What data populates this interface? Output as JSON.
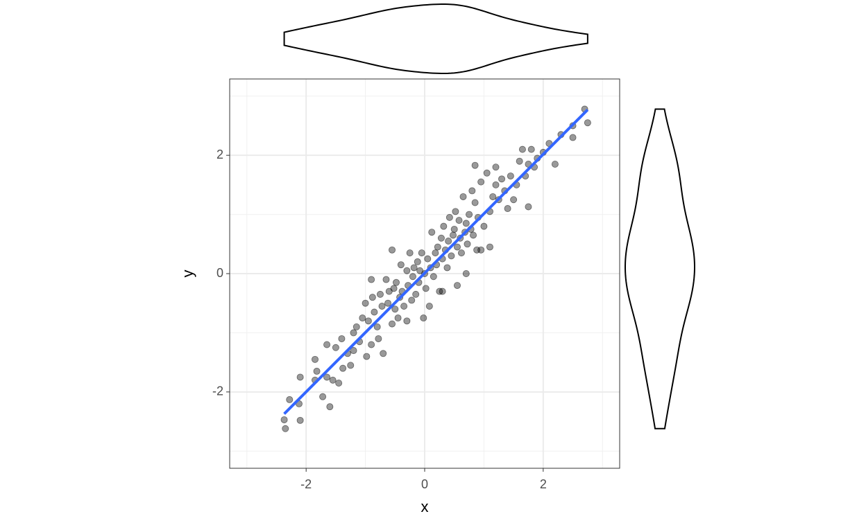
{
  "chart_data": {
    "type": "scatter",
    "x_label": "x",
    "y_label": "y",
    "xlim": [
      -3.29,
      3.29
    ],
    "ylim": [
      -3.29,
      3.29
    ],
    "xticks": [
      -2,
      0,
      2
    ],
    "yticks": [
      -2,
      0,
      2
    ],
    "xminor": [
      -3,
      -1,
      1,
      3
    ],
    "yminor": [
      -3,
      -1,
      1,
      3
    ],
    "grid": true,
    "color": "#000000",
    "marginal": "violin",
    "fit": {
      "color": "#3366FF",
      "x": [
        -2.37,
        2.75
      ],
      "y": [
        -2.37,
        2.77
      ]
    },
    "x": [
      -2.37,
      -2.35,
      -2.28,
      -2.12,
      -2.1,
      -2.1,
      -1.85,
      -1.85,
      -1.82,
      -1.72,
      -1.65,
      -1.6,
      -1.55,
      -1.5,
      -1.45,
      -1.4,
      -1.38,
      -1.3,
      -1.25,
      -1.2,
      -1.2,
      -1.15,
      -1.1,
      -1.05,
      -1.0,
      -0.98,
      -0.95,
      -0.9,
      -0.88,
      -0.85,
      -0.8,
      -0.78,
      -0.75,
      -0.72,
      -0.7,
      -0.65,
      -0.62,
      -0.6,
      -0.55,
      -0.52,
      -0.5,
      -0.48,
      -0.45,
      -0.42,
      -0.4,
      -0.38,
      -0.35,
      -0.3,
      -0.28,
      -0.25,
      -0.22,
      -0.2,
      -0.18,
      -0.15,
      -0.12,
      -0.1,
      -0.08,
      -0.05,
      -0.02,
      0.0,
      0.02,
      0.05,
      0.08,
      0.1,
      0.12,
      0.15,
      0.18,
      0.2,
      0.22,
      0.25,
      0.28,
      0.3,
      0.32,
      0.35,
      0.38,
      0.4,
      0.42,
      0.45,
      0.48,
      0.5,
      0.52,
      0.55,
      0.58,
      0.6,
      0.62,
      0.65,
      0.68,
      0.7,
      0.72,
      0.75,
      0.78,
      0.8,
      0.82,
      0.85,
      0.88,
      0.9,
      0.95,
      1.0,
      1.05,
      1.1,
      1.15,
      1.2,
      1.25,
      1.3,
      1.35,
      1.4,
      1.45,
      1.5,
      1.55,
      1.6,
      1.65,
      1.7,
      1.75,
      1.8,
      1.85,
      1.9,
      2.0,
      2.1,
      2.2,
      2.3,
      2.5,
      2.5,
      2.7,
      2.75,
      0.85,
      0.55,
      1.1,
      -0.9,
      0.3,
      0.95,
      -0.3,
      0.7,
      1.75,
      -0.55,
      1.2,
      -1.65
    ],
    "values": [
      -2.47,
      -2.62,
      -2.13,
      -2.2,
      -1.75,
      -2.48,
      -1.45,
      -1.8,
      -1.65,
      -2.08,
      -1.2,
      -2.25,
      -1.8,
      -1.25,
      -1.85,
      -1.1,
      -1.6,
      -1.35,
      -1.55,
      -1.3,
      -1.0,
      -0.9,
      -1.15,
      -0.75,
      -0.5,
      -1.4,
      -0.8,
      -1.2,
      -0.4,
      -0.65,
      -0.9,
      -1.1,
      -0.35,
      -0.55,
      -1.35,
      -0.1,
      -0.5,
      -0.3,
      -0.85,
      -0.25,
      -0.6,
      -0.15,
      -0.75,
      -0.4,
      0.15,
      -0.3,
      -0.55,
      0.05,
      -0.2,
      0.35,
      -0.45,
      -0.05,
      0.1,
      -0.35,
      0.2,
      -0.15,
      0.05,
      0.35,
      -0.75,
      0.0,
      -0.25,
      0.25,
      -0.55,
      0.1,
      0.7,
      -0.05,
      0.35,
      0.15,
      0.45,
      -0.3,
      0.6,
      0.25,
      0.8,
      0.4,
      0.1,
      0.55,
      0.95,
      0.3,
      0.65,
      0.75,
      1.05,
      0.45,
      0.9,
      0.6,
      0.35,
      1.3,
      0.7,
      0.85,
      0.5,
      1.0,
      0.75,
      1.4,
      0.65,
      1.2,
      0.4,
      0.95,
      1.55,
      0.8,
      1.7,
      1.05,
      1.3,
      1.5,
      1.25,
      1.6,
      1.4,
      1.1,
      1.65,
      1.25,
      1.5,
      1.9,
      2.1,
      1.65,
      1.85,
      2.1,
      1.8,
      1.95,
      2.05,
      2.2,
      1.85,
      2.35,
      2.3,
      2.5,
      2.78,
      2.55,
      1.83,
      -0.2,
      0.45,
      -0.1,
      -0.3,
      0.4,
      -0.8,
      0.0,
      1.13,
      0.4,
      1.8,
      -1.75
    ]
  }
}
